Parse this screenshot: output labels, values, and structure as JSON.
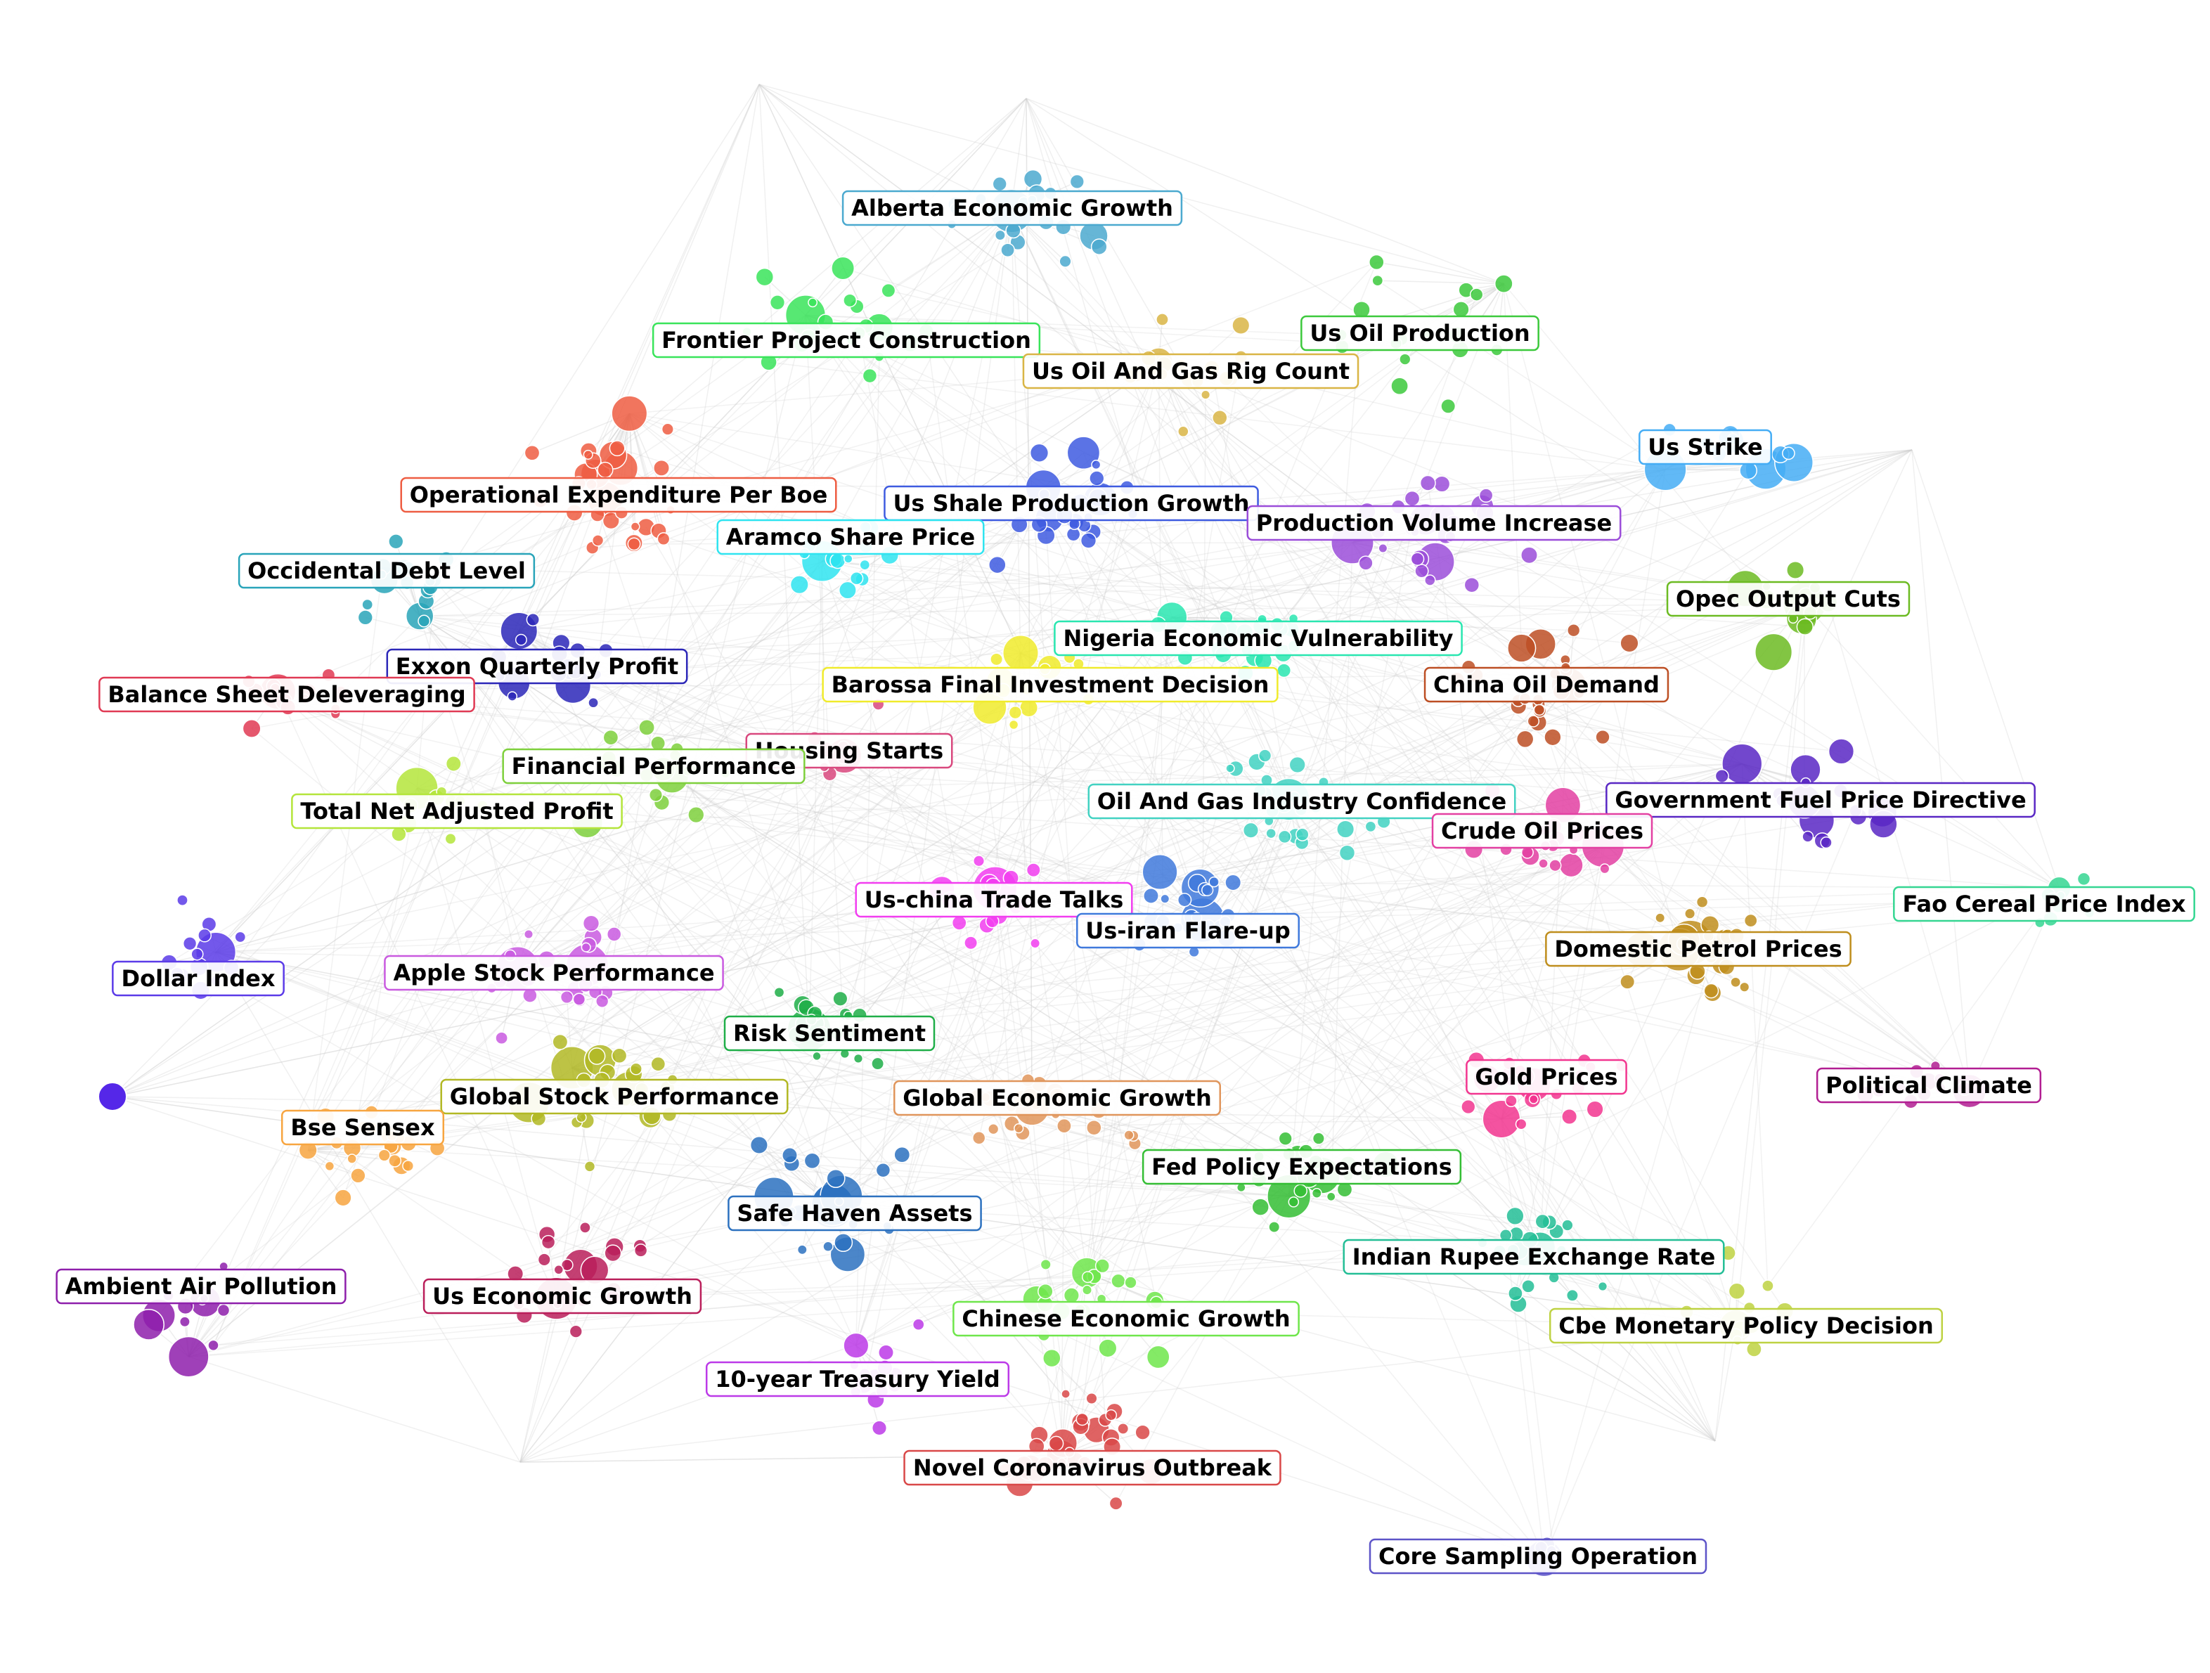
{
  "clusters": [
    {
      "label": "Alberta Economic Growth",
      "color": "#4BA9CF",
      "center": [
        1440,
        300
      ],
      "spread": [
        150,
        120
      ],
      "count": 22
    },
    {
      "label": "Frontier Project Construction",
      "color": "#39E45A",
      "center": [
        1180,
        460
      ],
      "spread": [
        180,
        100
      ],
      "count": 22
    },
    {
      "label": "Us Oil Production",
      "color": "#3CC93C",
      "center": [
        2040,
        450
      ],
      "spread": [
        150,
        160
      ],
      "count": 18
    },
    {
      "label": "Us Oil And Gas Rig Count",
      "color": "#D9B545",
      "center": [
        1690,
        540
      ],
      "spread": [
        150,
        110
      ],
      "count": 18
    },
    {
      "label": "Operational Expenditure Per Boe",
      "color": "#EE5D42",
      "center": [
        880,
        700
      ],
      "spread": [
        150,
        130
      ],
      "count": 30
    },
    {
      "label": "Us Shale Production Growth",
      "color": "#3E5BE0",
      "center": [
        1520,
        730
      ],
      "spread": [
        170,
        120
      ],
      "count": 24
    },
    {
      "label": "Aramco Share Price",
      "color": "#2FE4F0",
      "center": [
        1210,
        790
      ],
      "spread": [
        110,
        80
      ],
      "count": 16
    },
    {
      "label": "Us Strike",
      "color": "#45ADF5",
      "center": [
        2460,
        640
      ],
      "spread": [
        140,
        90
      ],
      "count": 14
    },
    {
      "label": "Production Volume Increase",
      "color": "#9B4DD9",
      "center": [
        2040,
        760
      ],
      "spread": [
        170,
        110
      ],
      "count": 28
    },
    {
      "label": "Occidental Debt Level",
      "color": "#29A4B9",
      "center": [
        560,
        820
      ],
      "spread": [
        130,
        90
      ],
      "count": 18
    },
    {
      "label": "Opec Output Cuts",
      "color": "#6CBB22",
      "center": [
        2540,
        860
      ],
      "spread": [
        110,
        80
      ],
      "count": 16
    },
    {
      "label": "Nigeria Economic Vulnerability",
      "color": "#29E6B0",
      "center": [
        1790,
        910
      ],
      "spread": [
        170,
        90
      ],
      "count": 22
    },
    {
      "label": "Exxon Quarterly Profit",
      "color": "#2C27B8",
      "center": [
        780,
        950
      ],
      "spread": [
        130,
        80
      ],
      "count": 18
    },
    {
      "label": "China Oil Demand",
      "color": "#BD4F24",
      "center": [
        2200,
        980
      ],
      "spread": [
        170,
        120
      ],
      "count": 26
    },
    {
      "label": "Balance Sheet Deleveraging",
      "color": "#E03A54",
      "center": [
        400,
        980
      ],
      "spread": [
        150,
        80
      ],
      "count": 14
    },
    {
      "label": "Barossa Final Investment Decision",
      "color": "#F0EB2B",
      "center": [
        1480,
        980
      ],
      "spread": [
        140,
        100
      ],
      "count": 14
    },
    {
      "label": "Financial Performance",
      "color": "#7ED03C",
      "center": [
        930,
        1090
      ],
      "spread": [
        150,
        110
      ],
      "count": 18
    },
    {
      "label": "Housing Starts",
      "color": "#D9487E",
      "center": [
        1200,
        1070
      ],
      "spread": [
        120,
        80
      ],
      "count": 10
    },
    {
      "label": "Total Net Adjusted Profit",
      "color": "#B4E53B",
      "center": [
        650,
        1150
      ],
      "spread": [
        130,
        90
      ],
      "count": 14
    },
    {
      "label": "Oil And Gas Industry Confidence",
      "color": "#42D2C2",
      "center": [
        1840,
        1150
      ],
      "spread": [
        170,
        90
      ],
      "count": 26
    },
    {
      "label": "Government Fuel Price Directive",
      "color": "#5927C4",
      "center": [
        2590,
        1140
      ],
      "spread": [
        180,
        120
      ],
      "count": 18
    },
    {
      "label": "Crude Oil Prices",
      "color": "#E340A2",
      "center": [
        2190,
        1190
      ],
      "spread": [
        130,
        90
      ],
      "count": 18
    },
    {
      "label": "Us-china Trade Talks",
      "color": "#F23DF0",
      "center": [
        1410,
        1280
      ],
      "spread": [
        110,
        80
      ],
      "count": 18
    },
    {
      "label": "Us-iran Flare-up",
      "color": "#3F79DC",
      "center": [
        1690,
        1300
      ],
      "spread": [
        140,
        100
      ],
      "count": 24
    },
    {
      "label": "Fao Cereal Price Index",
      "color": "#35D692",
      "center": [
        2910,
        1290
      ],
      "spread": [
        90,
        70
      ],
      "count": 10
    },
    {
      "label": "Domestic Petrol Prices",
      "color": "#BF8E1D",
      "center": [
        2410,
        1360
      ],
      "spread": [
        140,
        110
      ],
      "count": 26
    },
    {
      "label": "Dollar Index",
      "color": "#5B3BE8",
      "center": [
        300,
        1380
      ],
      "spread": [
        90,
        140
      ],
      "count": 14
    },
    {
      "label": "Apple Stock Performance",
      "color": "#C95AE0",
      "center": [
        790,
        1380
      ],
      "spread": [
        170,
        110
      ],
      "count": 24
    },
    {
      "label": "Risk Sentiment",
      "color": "#1FAE48",
      "center": [
        1180,
        1450
      ],
      "spread": [
        110,
        120
      ],
      "count": 20
    },
    {
      "label": "Global Stock Performance",
      "color": "#B2B824",
      "center": [
        870,
        1560
      ],
      "spread": [
        190,
        110
      ],
      "count": 30
    },
    {
      "label": "Global Economic Growth",
      "color": "#E0955B",
      "center": [
        1500,
        1580
      ],
      "spread": [
        190,
        110
      ],
      "count": 26
    },
    {
      "label": "Gold Prices",
      "color": "#F2358F",
      "center": [
        2200,
        1540
      ],
      "spread": [
        150,
        100
      ],
      "count": 22
    },
    {
      "label": "Political Climate",
      "color": "#B21E92",
      "center": [
        2730,
        1540
      ],
      "spread": [
        110,
        80
      ],
      "count": 12
    },
    {
      "label": "Bse Sensex",
      "color": "#F7A540",
      "center": [
        520,
        1620
      ],
      "spread": [
        130,
        110
      ],
      "count": 22
    },
    {
      "label": "Fed Policy Expectations",
      "color": "#34BE34",
      "center": [
        1860,
        1670
      ],
      "spread": [
        170,
        110
      ],
      "count": 24
    },
    {
      "label": "Safe Haven Assets",
      "color": "#2C71BF",
      "center": [
        1180,
        1710
      ],
      "spread": [
        140,
        120
      ],
      "count": 24
    },
    {
      "label": "Indian Rupee Exchange Rate",
      "color": "#23BE96",
      "center": [
        2180,
        1780
      ],
      "spread": [
        160,
        100
      ],
      "count": 22
    },
    {
      "label": "Ambient Air Pollution",
      "color": "#8E1FAB",
      "center": [
        260,
        1850
      ],
      "spread": [
        100,
        100
      ],
      "count": 12
    },
    {
      "label": "Us Economic Growth",
      "color": "#BA1E5A",
      "center": [
        820,
        1820
      ],
      "spread": [
        150,
        120
      ],
      "count": 22
    },
    {
      "label": "Chinese Economic Growth",
      "color": "#6FE64B",
      "center": [
        1560,
        1860
      ],
      "spread": [
        160,
        120
      ],
      "count": 22
    },
    {
      "label": "Cbe Monetary Policy Decision",
      "color": "#BED242",
      "center": [
        2480,
        1860
      ],
      "spread": [
        110,
        120
      ],
      "count": 12
    },
    {
      "label": "10-year Treasury Yield",
      "color": "#BC3AE8",
      "center": [
        1230,
        1960
      ],
      "spread": [
        130,
        100
      ],
      "count": 14
    },
    {
      "label": "Novel Coronavirus Outbreak",
      "color": "#D94848",
      "center": [
        1540,
        2060
      ],
      "spread": [
        160,
        100
      ],
      "count": 30
    },
    {
      "label": "Core Sampling Operation",
      "color": "#5D54C8",
      "center": [
        2200,
        2210
      ],
      "spread": [
        50,
        30
      ],
      "count": 6
    }
  ],
  "labels": [
    {
      "text": "Alberta Economic Growth",
      "color": "#4BA9CF"
    },
    {
      "text": "Frontier Project Construction",
      "color": "#39E45A"
    },
    {
      "text": "Us Oil Production",
      "color": "#3CC93C"
    },
    {
      "text": "Us Oil And Gas Rig Count",
      "color": "#D9B545"
    },
    {
      "text": "Us Strike",
      "color": "#45ADF5"
    },
    {
      "text": "Operational Expenditure Per Boe",
      "color": "#EE5D42"
    },
    {
      "text": "Us Shale Production Growth",
      "color": "#3E5BE0"
    },
    {
      "text": "Aramco Share Price",
      "color": "#2FE4F0"
    },
    {
      "text": "Production Volume Increase",
      "color": "#9B4DD9"
    },
    {
      "text": "Occidental Debt Level",
      "color": "#29A4B9"
    },
    {
      "text": "Opec Output Cuts",
      "color": "#6CBB22"
    },
    {
      "text": "Nigeria Economic Vulnerability",
      "color": "#29E6B0"
    },
    {
      "text": "Exxon Quarterly Profit",
      "color": "#2C27B8"
    },
    {
      "text": "China Oil Demand",
      "color": "#BD4F24"
    },
    {
      "text": "Balance Sheet Deleveraging",
      "color": "#E03A54"
    },
    {
      "text": "Barossa Final Investment Decision",
      "color": "#F0EB2B"
    },
    {
      "text": "Housing Starts",
      "color": "#D9487E"
    },
    {
      "text": "Financial Performance",
      "color": "#7ED03C"
    },
    {
      "text": "Total Net Adjusted Profit",
      "color": "#B4E53B"
    },
    {
      "text": "Oil And Gas Industry Confidence",
      "color": "#42D2C2"
    },
    {
      "text": "Government Fuel Price Directive",
      "color": "#5927C4"
    },
    {
      "text": "Crude Oil Prices",
      "color": "#E340A2"
    },
    {
      "text": "Fao Cereal Price Index",
      "color": "#35D692"
    },
    {
      "text": "Us-china Trade Talks",
      "color": "#F23DF0"
    },
    {
      "text": "Us-iran Flare-up",
      "color": "#3F79DC"
    },
    {
      "text": "Domestic Petrol Prices",
      "color": "#BF8E1D"
    },
    {
      "text": "Dollar Index",
      "color": "#5B3BE8"
    },
    {
      "text": "Apple Stock Performance",
      "color": "#C95AE0"
    },
    {
      "text": "Risk Sentiment",
      "color": "#1FAE48"
    },
    {
      "text": "Gold Prices",
      "color": "#F2358F"
    },
    {
      "text": "Political Climate",
      "color": "#B21E92"
    },
    {
      "text": "Global Stock Performance",
      "color": "#B2B824"
    },
    {
      "text": "Global Economic Growth",
      "color": "#E0955B"
    },
    {
      "text": "Bse Sensex",
      "color": "#F7A540"
    },
    {
      "text": "Fed Policy Expectations",
      "color": "#34BE34"
    },
    {
      "text": "Safe Haven Assets",
      "color": "#2C71BF"
    },
    {
      "text": "Indian Rupee Exchange Rate",
      "color": "#23BE96"
    },
    {
      "text": "Ambient Air Pollution",
      "color": "#8E1FAB"
    },
    {
      "text": "Us Economic Growth",
      "color": "#BA1E5A"
    },
    {
      "text": "Chinese Economic Growth",
      "color": "#6FE64B"
    },
    {
      "text": "Cbe Monetary Policy Decision",
      "color": "#BED242"
    },
    {
      "text": "10-year Treasury Yield",
      "color": "#BC3AE8"
    },
    {
      "text": "Novel Coronavirus Outbreak",
      "color": "#D94848"
    },
    {
      "text": "Core Sampling Operation",
      "color": "#5D54C8"
    }
  ]
}
